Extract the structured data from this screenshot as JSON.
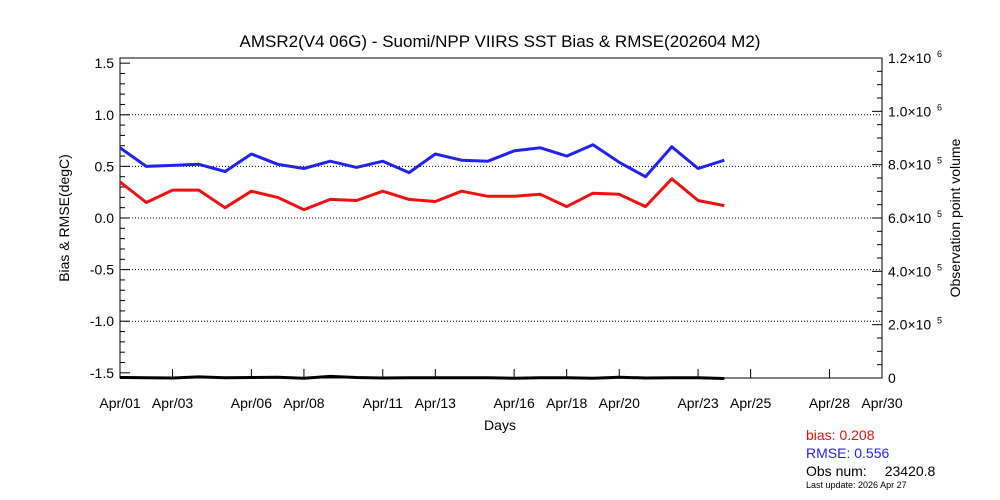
{
  "chart_data": {
    "type": "line",
    "title": "AMSR2(V4 06G) - Suomi/NPP VIIRS SST Bias & RMSE(202604 M2)",
    "xlabel": "Days",
    "ylabel": "Bias & RMSE(degC)",
    "y2label": "Observation point volume",
    "xlim": [
      1,
      30
    ],
    "ylim": [
      -1.55,
      1.55
    ],
    "y2lim": [
      0,
      1200000
    ],
    "x_ticks": [
      {
        "day": 1,
        "label": "Apr/01"
      },
      {
        "day": 3,
        "label": "Apr/03"
      },
      {
        "day": 6,
        "label": "Apr/06"
      },
      {
        "day": 8,
        "label": "Apr/08"
      },
      {
        "day": 11,
        "label": "Apr/11"
      },
      {
        "day": 13,
        "label": "Apr/13"
      },
      {
        "day": 16,
        "label": "Apr/16"
      },
      {
        "day": 18,
        "label": "Apr/18"
      },
      {
        "day": 20,
        "label": "Apr/20"
      },
      {
        "day": 23,
        "label": "Apr/23"
      },
      {
        "day": 25,
        "label": "Apr/25"
      },
      {
        "day": 28,
        "label": "Apr/28"
      },
      {
        "day": 30,
        "label": "Apr/30"
      }
    ],
    "y_ticks": [
      {
        "value": 1.5,
        "label": "1.5"
      },
      {
        "value": 1.0,
        "label": "1.0"
      },
      {
        "value": 0.5,
        "label": "0.5"
      },
      {
        "value": 0.0,
        "label": "0.0"
      },
      {
        "value": -0.5,
        "label": "-0.5"
      },
      {
        "value": -1.0,
        "label": "-1.0"
      },
      {
        "value": -1.5,
        "label": "-1.5"
      }
    ],
    "y2_ticks": [
      {
        "value": 0,
        "mant": "0",
        "exp": ""
      },
      {
        "value": 200000,
        "mant": "2.0×10",
        "exp": "5"
      },
      {
        "value": 400000,
        "mant": "4.0×10",
        "exp": "5"
      },
      {
        "value": 600000,
        "mant": "6.0×10",
        "exp": "5"
      },
      {
        "value": 800000,
        "mant": "8.0×10",
        "exp": "5"
      },
      {
        "value": 1000000,
        "mant": "1.0×10",
        "exp": "6"
      },
      {
        "value": 1200000,
        "mant": "1.2×10",
        "exp": "6"
      }
    ],
    "gridlines": [
      1.0,
      0.5,
      0.0,
      -0.5,
      -1.0
    ],
    "x": [
      1,
      2,
      3,
      4,
      5,
      6,
      7,
      8,
      9,
      10,
      11,
      12,
      13,
      14,
      15,
      16,
      17,
      18,
      19,
      20,
      21,
      22,
      23,
      24
    ],
    "series": [
      {
        "key": "bias",
        "color": "#ee1111",
        "axis": "left",
        "values": [
          0.35,
          0.15,
          0.27,
          0.27,
          0.1,
          0.26,
          0.2,
          0.08,
          0.18,
          0.17,
          0.26,
          0.18,
          0.16,
          0.26,
          0.21,
          0.21,
          0.23,
          0.11,
          0.24,
          0.23,
          0.11,
          0.38,
          0.17,
          0.12
        ]
      },
      {
        "key": "rmse",
        "color": "#2222ee",
        "axis": "left",
        "values": [
          0.68,
          0.5,
          0.51,
          0.52,
          0.45,
          0.62,
          0.52,
          0.48,
          0.55,
          0.49,
          0.55,
          0.44,
          0.62,
          0.56,
          0.55,
          0.65,
          0.68,
          0.6,
          0.71,
          0.54,
          0.4,
          0.69,
          0.48,
          0.56
        ]
      },
      {
        "key": "obs",
        "color": "#000000",
        "axis": "right",
        "values": [
          2000,
          1000,
          0,
          4000,
          1000,
          2000,
          3000,
          -1000,
          6000,
          2000,
          0,
          1000,
          1000,
          1000,
          1000,
          -1000,
          1000,
          1000,
          -1000,
          3000,
          0,
          1000,
          1000,
          -2000
        ]
      }
    ]
  },
  "stats": {
    "bias_label": "bias: 0.208",
    "rmse_label": "RMSE: 0.556",
    "obs_label": "Obs num:",
    "obs_value": "23420.8",
    "last_update": "Last update: 2026 Apr 27"
  }
}
